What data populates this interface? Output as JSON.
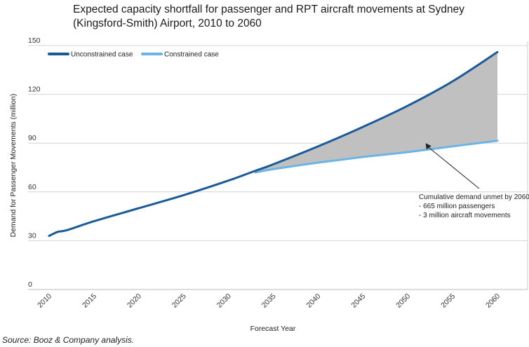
{
  "chart_data": {
    "type": "line",
    "title_lines": [
      "Expected capacity shortfall for passenger and RPT aircraft movements at Sydney",
      "(Kingsford-Smith) Airport, 2010 to 2060"
    ],
    "xlabel": "Forecast Year",
    "ylabel": "Demand for Passenger Movements (million)",
    "xlim": [
      2010,
      2060
    ],
    "ylim": [
      0,
      150
    ],
    "x_ticks": [
      2010,
      2015,
      2020,
      2025,
      2030,
      2035,
      2040,
      2045,
      2050,
      2055,
      2060
    ],
    "y_ticks": [
      0,
      30,
      60,
      90,
      120,
      150
    ],
    "grid": "horizontal",
    "legend_placement": "top-left",
    "series": [
      {
        "name": "Unconstrained case",
        "color": "#1a5a99",
        "x": [
          2010,
          2011,
          2012,
          2015,
          2020,
          2025,
          2030,
          2033,
          2035,
          2040,
          2045,
          2050,
          2055,
          2060
        ],
        "y": [
          33,
          35.5,
          36.5,
          42,
          50,
          58,
          67,
          73,
          77,
          88,
          100,
          113,
          128,
          146
        ]
      },
      {
        "name": "Constrained case",
        "color": "#6ab4e6",
        "x": [
          2033,
          2035,
          2040,
          2045,
          2050,
          2055,
          2060
        ],
        "y": [
          72,
          74,
          78,
          81.5,
          84.5,
          88,
          91.5
        ]
      }
    ],
    "shaded_area": {
      "between": [
        "Unconstrained case",
        "Constrained case"
      ],
      "color": "#c0c0c0"
    },
    "annotation": {
      "lines": [
        "Cumulative demand unmet by 2060",
        "- 665 million passengers",
        "- 3 million aircraft movements"
      ],
      "arrow_target": {
        "x": 2052,
        "y": 90
      }
    }
  },
  "source": "Source: Booz & Company analysis."
}
